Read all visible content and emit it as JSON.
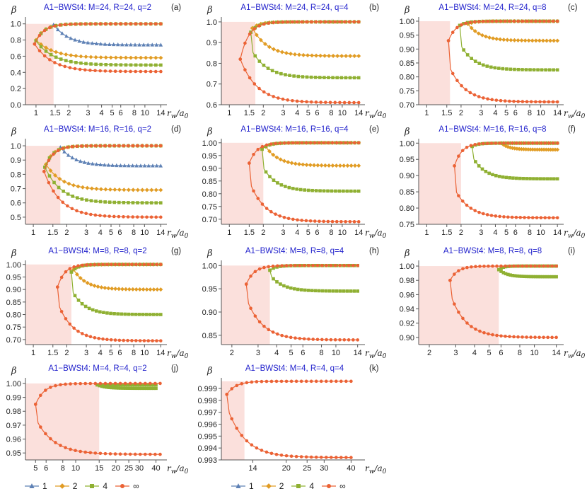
{
  "colors": {
    "s1": "#5e81b5",
    "s2": "#e19c24",
    "s4": "#8fb032",
    "sinf": "#eb6235",
    "shade": "#fbe0dc",
    "title": "#2222cc",
    "axis": "#555555"
  },
  "legend": [
    {
      "label": "1",
      "color": "#5e81b5",
      "marker": "triangle"
    },
    {
      "label": "2",
      "color": "#e19c24",
      "marker": "diamond"
    },
    {
      "label": "4",
      "color": "#8fb032",
      "marker": "square"
    },
    {
      "label": "∞",
      "color": "#eb6235",
      "marker": "circle"
    }
  ],
  "chart_data": [
    {
      "type": "line",
      "panel": "(a)",
      "title": "A1−BWSt4: M=24, R=24, q=2",
      "ylabel": "β",
      "xlabel": "r_w/a_0",
      "xscale": "log",
      "xlim": [
        0.8,
        15
      ],
      "ylim": [
        0.0,
        1.05
      ],
      "xticks": [
        1,
        1.5,
        2,
        3,
        4,
        5,
        6,
        8,
        10,
        14
      ],
      "xtick_labels": [
        "1",
        "1.5",
        "2",
        "3",
        "4",
        "5",
        "6",
        "8",
        "10",
        "14"
      ],
      "yticks": [
        0.0,
        0.2,
        0.4,
        0.6,
        0.8,
        1.0
      ],
      "ytick_labels": [
        "0.0",
        "0.2",
        "0.4",
        "0.6",
        "0.8",
        "1.0"
      ],
      "shade": {
        "x": 1.45,
        "y": 1.0
      },
      "series": [
        {
          "name": "1",
          "color": "#5e81b5",
          "marker": "triangle",
          "x_min": 1.45,
          "x_max": 14,
          "y_at_min": 0.99,
          "lower": 0.74
        },
        {
          "name": "2",
          "color": "#e19c24",
          "marker": "diamond",
          "x_min": 1.0,
          "x_max": 14,
          "y_at_min": 0.8,
          "upper": 1.0,
          "lower": 0.58
        },
        {
          "name": "4",
          "color": "#8fb032",
          "marker": "square",
          "x_min": 1.0,
          "x_max": 14,
          "y_at_min": 0.79,
          "upper": 1.0,
          "lower": 0.49
        },
        {
          "name": "∞",
          "color": "#eb6235",
          "marker": "circle",
          "x_min": 0.97,
          "x_max": 14,
          "y_at_min": 0.75,
          "upper": 1.0,
          "lower": 0.41
        }
      ]
    },
    {
      "type": "line",
      "panel": "(b)",
      "title": "A1−BWSt4: M=24, R=24, q=4",
      "ylabel": "β",
      "xlabel": "r_w/a_0",
      "xscale": "log",
      "xlim": [
        0.85,
        15
      ],
      "ylim": [
        0.6,
        1.01
      ],
      "xticks": [
        1,
        1.5,
        2,
        3,
        4,
        5,
        6,
        8,
        10,
        14
      ],
      "xtick_labels": [
        "1",
        "1.5",
        "2",
        "3",
        "4",
        "5",
        "6",
        "8",
        "10",
        "14"
      ],
      "yticks": [
        0.6,
        0.7,
        0.8,
        0.9,
        1.0
      ],
      "ytick_labels": [
        "0.6",
        "0.7",
        "0.8",
        "0.9",
        "1.0"
      ],
      "shade": {
        "x": 1.7,
        "y": 1.0
      },
      "series": [
        {
          "name": "2",
          "color": "#e19c24",
          "marker": "diamond",
          "x_min": 1.6,
          "x_max": 14,
          "y_at_min": 0.97,
          "upper": 1.0,
          "lower": 0.835
        },
        {
          "name": "4",
          "color": "#8fb032",
          "marker": "square",
          "x_min": 1.55,
          "x_max": 14,
          "y_at_min": 0.95,
          "upper": 1.0,
          "lower": 0.73,
          "lower_start": 0.87
        },
        {
          "name": "∞",
          "color": "#eb6235",
          "marker": "circle",
          "x_min": 1.25,
          "x_max": 14,
          "y_at_min": 0.82,
          "upper": 1.0,
          "lower": 0.61
        }
      ]
    },
    {
      "type": "line",
      "panel": "(c)",
      "title": "A1−BWSt4: M=24, R=24, q=8",
      "ylabel": "β",
      "xlabel": "r_w/a_0",
      "xscale": "log",
      "xlim": [
        0.85,
        15
      ],
      "ylim": [
        0.7,
        1.005
      ],
      "xticks": [
        1,
        1.5,
        2,
        3,
        4,
        5,
        6,
        8,
        10,
        14
      ],
      "xtick_labels": [
        "1",
        "1.5",
        "2",
        "3",
        "4",
        "5",
        "6",
        "8",
        "10",
        "14"
      ],
      "yticks": [
        0.7,
        0.75,
        0.8,
        0.85,
        0.9,
        0.95,
        1.0
      ],
      "ytick_labels": [
        "0.70",
        "0.75",
        "0.80",
        "0.85",
        "0.90",
        "0.95",
        "1.00"
      ],
      "shade": {
        "x": 1.6,
        "y": 1.0
      },
      "series": [
        {
          "name": "2",
          "color": "#e19c24",
          "marker": "diamond",
          "x_min": 2.3,
          "x_max": 14,
          "y_at_min": 0.99,
          "upper": 1.0,
          "lower": 0.93
        },
        {
          "name": "4",
          "color": "#8fb032",
          "marker": "square",
          "x_min": 1.95,
          "x_max": 14,
          "y_at_min": 0.985,
          "upper": 1.0,
          "lower": 0.825,
          "lower_start": 0.92
        },
        {
          "name": "∞",
          "color": "#eb6235",
          "marker": "circle",
          "x_min": 1.55,
          "x_max": 14,
          "y_at_min": 0.93,
          "upper": 1.0,
          "lower": 0.71,
          "lower_start": 0.845
        }
      ]
    },
    {
      "type": "line",
      "panel": "(d)",
      "title": "A1−BWSt4: M=16, R=16, q=2",
      "ylabel": "β",
      "xlabel": "r_w/a_0",
      "xscale": "log",
      "xlim": [
        0.85,
        15
      ],
      "ylim": [
        0.45,
        1.03
      ],
      "xticks": [
        1,
        1.5,
        2,
        3,
        4,
        5,
        6,
        8,
        10,
        14
      ],
      "xtick_labels": [
        "1",
        "1.5",
        "2",
        "3",
        "4",
        "5",
        "6",
        "8",
        "10",
        "14"
      ],
      "yticks": [
        0.5,
        0.6,
        0.7,
        0.8,
        0.9,
        1.0
      ],
      "ytick_labels": [
        "0.5",
        "0.6",
        "0.7",
        "0.8",
        "0.9",
        "1.0"
      ],
      "shade": {
        "x": 1.75,
        "y": 1.0
      },
      "series": [
        {
          "name": "1",
          "color": "#5e81b5",
          "marker": "triangle",
          "x_min": 1.75,
          "x_max": 14,
          "y_at_min": 0.99,
          "lower": 0.86
        },
        {
          "name": "2",
          "color": "#e19c24",
          "marker": "diamond",
          "x_min": 1.3,
          "x_max": 14,
          "y_at_min": 0.87,
          "upper": 1.0,
          "lower": 0.69
        },
        {
          "name": "4",
          "color": "#8fb032",
          "marker": "square",
          "x_min": 1.27,
          "x_max": 14,
          "y_at_min": 0.85,
          "upper": 1.0,
          "lower": 0.6
        },
        {
          "name": "∞",
          "color": "#eb6235",
          "marker": "circle",
          "x_min": 1.25,
          "x_max": 14,
          "y_at_min": 0.82,
          "upper": 1.0,
          "lower": 0.5
        }
      ]
    },
    {
      "type": "line",
      "panel": "(e)",
      "title": "A1−BWSt4: M=16, R=16, q=4",
      "ylabel": "β",
      "xlabel": "r_w/a_0",
      "xscale": "log",
      "xlim": [
        0.85,
        15
      ],
      "ylim": [
        0.68,
        1.005
      ],
      "xticks": [
        1,
        1.5,
        2,
        3,
        4,
        5,
        6,
        8,
        10,
        14
      ],
      "xtick_labels": [
        "1",
        "1.5",
        "2",
        "3",
        "4",
        "5",
        "6",
        "8",
        "10",
        "14"
      ],
      "yticks": [
        0.7,
        0.75,
        0.8,
        0.85,
        0.9,
        0.95,
        1.0
      ],
      "ytick_labels": [
        "0.70",
        "0.75",
        "0.80",
        "0.85",
        "0.90",
        "0.95",
        "1.00"
      ],
      "shade": {
        "x": 2.0,
        "y": 1.0
      },
      "series": [
        {
          "name": "2",
          "color": "#e19c24",
          "marker": "diamond",
          "x_min": 2.1,
          "x_max": 14,
          "y_at_min": 0.985,
          "upper": 1.0,
          "lower": 0.91
        },
        {
          "name": "4",
          "color": "#8fb032",
          "marker": "square",
          "x_min": 1.95,
          "x_max": 14,
          "y_at_min": 0.975,
          "upper": 1.0,
          "lower": 0.81,
          "lower_start": 0.91
        },
        {
          "name": "∞",
          "color": "#eb6235",
          "marker": "circle",
          "x_min": 1.5,
          "x_max": 14,
          "y_at_min": 0.92,
          "upper": 1.0,
          "lower": 0.69,
          "lower_start": 0.85
        }
      ]
    },
    {
      "type": "line",
      "panel": "(f)",
      "title": "A1−BWSt4: M=16, R=16, q=8",
      "ylabel": "β",
      "xlabel": "r_w/a_0",
      "xscale": "log",
      "xlim": [
        0.85,
        15
      ],
      "ylim": [
        0.75,
        1.005
      ],
      "xticks": [
        1,
        1.5,
        2,
        3,
        4,
        5,
        6,
        8,
        10,
        14
      ],
      "xtick_labels": [
        "1",
        "1.5",
        "2",
        "3",
        "4",
        "5",
        "6",
        "8",
        "10",
        "14"
      ],
      "yticks": [
        0.75,
        0.8,
        0.85,
        0.9,
        0.95,
        1.0
      ],
      "ytick_labels": [
        "0.75",
        "0.80",
        "0.85",
        "0.90",
        "0.95",
        "1.00"
      ],
      "shade": {
        "x": 2.0,
        "y": 1.0
      },
      "series": [
        {
          "name": "2",
          "color": "#e19c24",
          "marker": "diamond",
          "x_min": 4.5,
          "x_max": 14,
          "y_at_min": 1.0,
          "upper": 1.0,
          "lower": 0.98
        },
        {
          "name": "4",
          "color": "#8fb032",
          "marker": "square",
          "x_min": 2.5,
          "x_max": 14,
          "y_at_min": 0.99,
          "upper": 1.0,
          "lower": 0.89,
          "lower_start": 0.96
        },
        {
          "name": "∞",
          "color": "#eb6235",
          "marker": "circle",
          "x_min": 1.75,
          "x_max": 14,
          "y_at_min": 0.93,
          "upper": 1.0,
          "lower": 0.77,
          "lower_start": 0.86
        }
      ]
    },
    {
      "type": "line",
      "panel": "(g)",
      "title": "A1−BWSt4: M=8, R=8, q=2",
      "ylabel": "β",
      "xlabel": "r_w/a_0",
      "xscale": "log",
      "xlim": [
        0.85,
        15
      ],
      "ylim": [
        0.68,
        1.005
      ],
      "xticks": [
        1,
        1.5,
        2,
        3,
        4,
        5,
        6,
        8,
        10,
        14
      ],
      "xtick_labels": [
        "1",
        "1.5",
        "2",
        "3",
        "4",
        "5",
        "6",
        "8",
        "10",
        "14"
      ],
      "yticks": [
        0.7,
        0.75,
        0.8,
        0.85,
        0.9,
        0.95,
        1.0
      ],
      "ytick_labels": [
        "0.70",
        "0.75",
        "0.80",
        "0.85",
        "0.90",
        "0.95",
        "1.00"
      ],
      "shade": {
        "x": 2.2,
        "y": 1.0
      },
      "series": [
        {
          "name": "2",
          "color": "#e19c24",
          "marker": "diamond",
          "x_min": 2.3,
          "x_max": 14,
          "y_at_min": 0.98,
          "upper": 1.0,
          "lower": 0.9
        },
        {
          "name": "4",
          "color": "#8fb032",
          "marker": "square",
          "x_min": 2.2,
          "x_max": 14,
          "y_at_min": 0.97,
          "upper": 1.0,
          "lower": 0.8,
          "lower_start": 0.9
        },
        {
          "name": "∞",
          "color": "#eb6235",
          "marker": "circle",
          "x_min": 1.65,
          "x_max": 14,
          "y_at_min": 0.91,
          "upper": 1.0,
          "lower": 0.695,
          "lower_start": 0.85
        }
      ]
    },
    {
      "type": "line",
      "panel": "(h)",
      "title": "A1−BWSt4: M=8, R=8, q=4",
      "ylabel": "β",
      "xlabel": "r_w/a_0",
      "xscale": "log",
      "xlim": [
        1.7,
        15
      ],
      "ylim": [
        0.83,
        1.005
      ],
      "xticks": [
        2,
        3,
        4,
        5,
        6,
        8,
        10,
        14
      ],
      "xtick_labels": [
        "2",
        "3",
        "4",
        "5",
        "6",
        "8",
        "10",
        "14"
      ],
      "yticks": [
        0.85,
        0.9,
        0.95,
        1.0
      ],
      "ytick_labels": [
        "0.85",
        "0.90",
        "0.95",
        "1.00"
      ],
      "shade": {
        "x": 3.6,
        "y": 1.0
      },
      "series": [
        {
          "name": "4",
          "color": "#8fb032",
          "marker": "square",
          "x_min": 3.6,
          "x_max": 14,
          "y_at_min": 0.99,
          "upper": 1.0,
          "lower": 0.945,
          "lower_start": 0.98
        },
        {
          "name": "∞",
          "color": "#eb6235",
          "marker": "circle",
          "x_min": 2.5,
          "x_max": 14,
          "y_at_min": 0.96,
          "upper": 1.0,
          "lower": 0.84,
          "lower_start": 0.93
        }
      ]
    },
    {
      "type": "line",
      "panel": "(i)",
      "title": "A1−BWSt4: M=8, R=8, q=8",
      "ylabel": "β",
      "xlabel": "r_w/a_0",
      "xscale": "log",
      "xlim": [
        1.7,
        15
      ],
      "ylim": [
        0.89,
        1.004
      ],
      "xticks": [
        2,
        3,
        4,
        5,
        6,
        8,
        10,
        14
      ],
      "xtick_labels": [
        "2",
        "3",
        "4",
        "5",
        "6",
        "8",
        "10",
        "14"
      ],
      "yticks": [
        0.9,
        0.92,
        0.94,
        0.96,
        0.98,
        1.0
      ],
      "ytick_labels": [
        "0.90",
        "0.92",
        "0.94",
        "0.96",
        "0.98",
        "1.00"
      ],
      "shade": {
        "x": 5.8,
        "y": 1.0
      },
      "series": [
        {
          "name": "4",
          "color": "#8fb032",
          "marker": "square",
          "x_min": 5.8,
          "x_max": 14,
          "y_at_min": 0.995,
          "upper": 1.0,
          "lower": 0.985
        },
        {
          "name": "∞",
          "color": "#eb6235",
          "marker": "circle",
          "x_min": 2.75,
          "x_max": 14,
          "y_at_min": 0.98,
          "upper": 1.0,
          "lower": 0.9,
          "lower_start": 0.962
        }
      ]
    },
    {
      "type": "line",
      "panel": "(j)",
      "title": "A1−BWSt4: M=4, R=4, q=2",
      "ylabel": "β",
      "xlabel": "r_w/a_0",
      "xscale": "log",
      "xlim": [
        4.2,
        46
      ],
      "ylim": [
        0.945,
        1.002
      ],
      "xticks": [
        5,
        6,
        8,
        10,
        15,
        20,
        25,
        30,
        40
      ],
      "xtick_labels": [
        "5",
        "6",
        "8",
        "10",
        "15",
        "20",
        "25",
        "30",
        "40"
      ],
      "yticks": [
        0.95,
        0.96,
        0.97,
        0.98,
        0.99,
        1.0
      ],
      "ytick_labels": [
        "0.95",
        "0.96",
        "0.97",
        "0.98",
        "0.99",
        "1.00"
      ],
      "shade": {
        "x": 15,
        "y": 1.0
      },
      "series": [
        {
          "name": "4",
          "color": "#8fb032",
          "marker": "square",
          "x_min": 14.5,
          "x_max": 40,
          "y_at_min": 0.999,
          "upper": 0.999,
          "lower": 0.9965
        },
        {
          "name": "∞",
          "color": "#eb6235",
          "marker": "circle",
          "x_min": 5.0,
          "x_max": 43,
          "y_at_min": 0.985,
          "upper": 1.0,
          "lower": 0.949,
          "lower_start": 0.975
        }
      ]
    },
    {
      "type": "line",
      "panel": "(k)",
      "title": "A1−BWSt4: M=4, R=4, q=4",
      "ylabel": "β",
      "xlabel": "r_w/a_0",
      "xscale": "log",
      "xlim": [
        10,
        45
      ],
      "ylim": [
        0.993,
        0.99965
      ],
      "xticks": [
        14,
        20,
        25,
        30,
        40
      ],
      "xtick_labels": [
        "14",
        "20",
        "25",
        "30",
        "40"
      ],
      "yticks": [
        0.993,
        0.994,
        0.995,
        0.996,
        0.997,
        0.998,
        0.999
      ],
      "ytick_labels": [
        "0.993",
        "0.994",
        "0.995",
        "0.996",
        "0.997",
        "0.998",
        "0.999"
      ],
      "shade": {
        "x": 12.8,
        "y": 0.9996
      },
      "series": [
        {
          "name": "∞",
          "color": "#eb6235",
          "marker": "circle",
          "x_min": 10.6,
          "x_max": 40,
          "y_at_min": 0.9985,
          "upper": 0.9996,
          "lower": 0.9932,
          "lower_start": 0.9975
        }
      ]
    }
  ]
}
